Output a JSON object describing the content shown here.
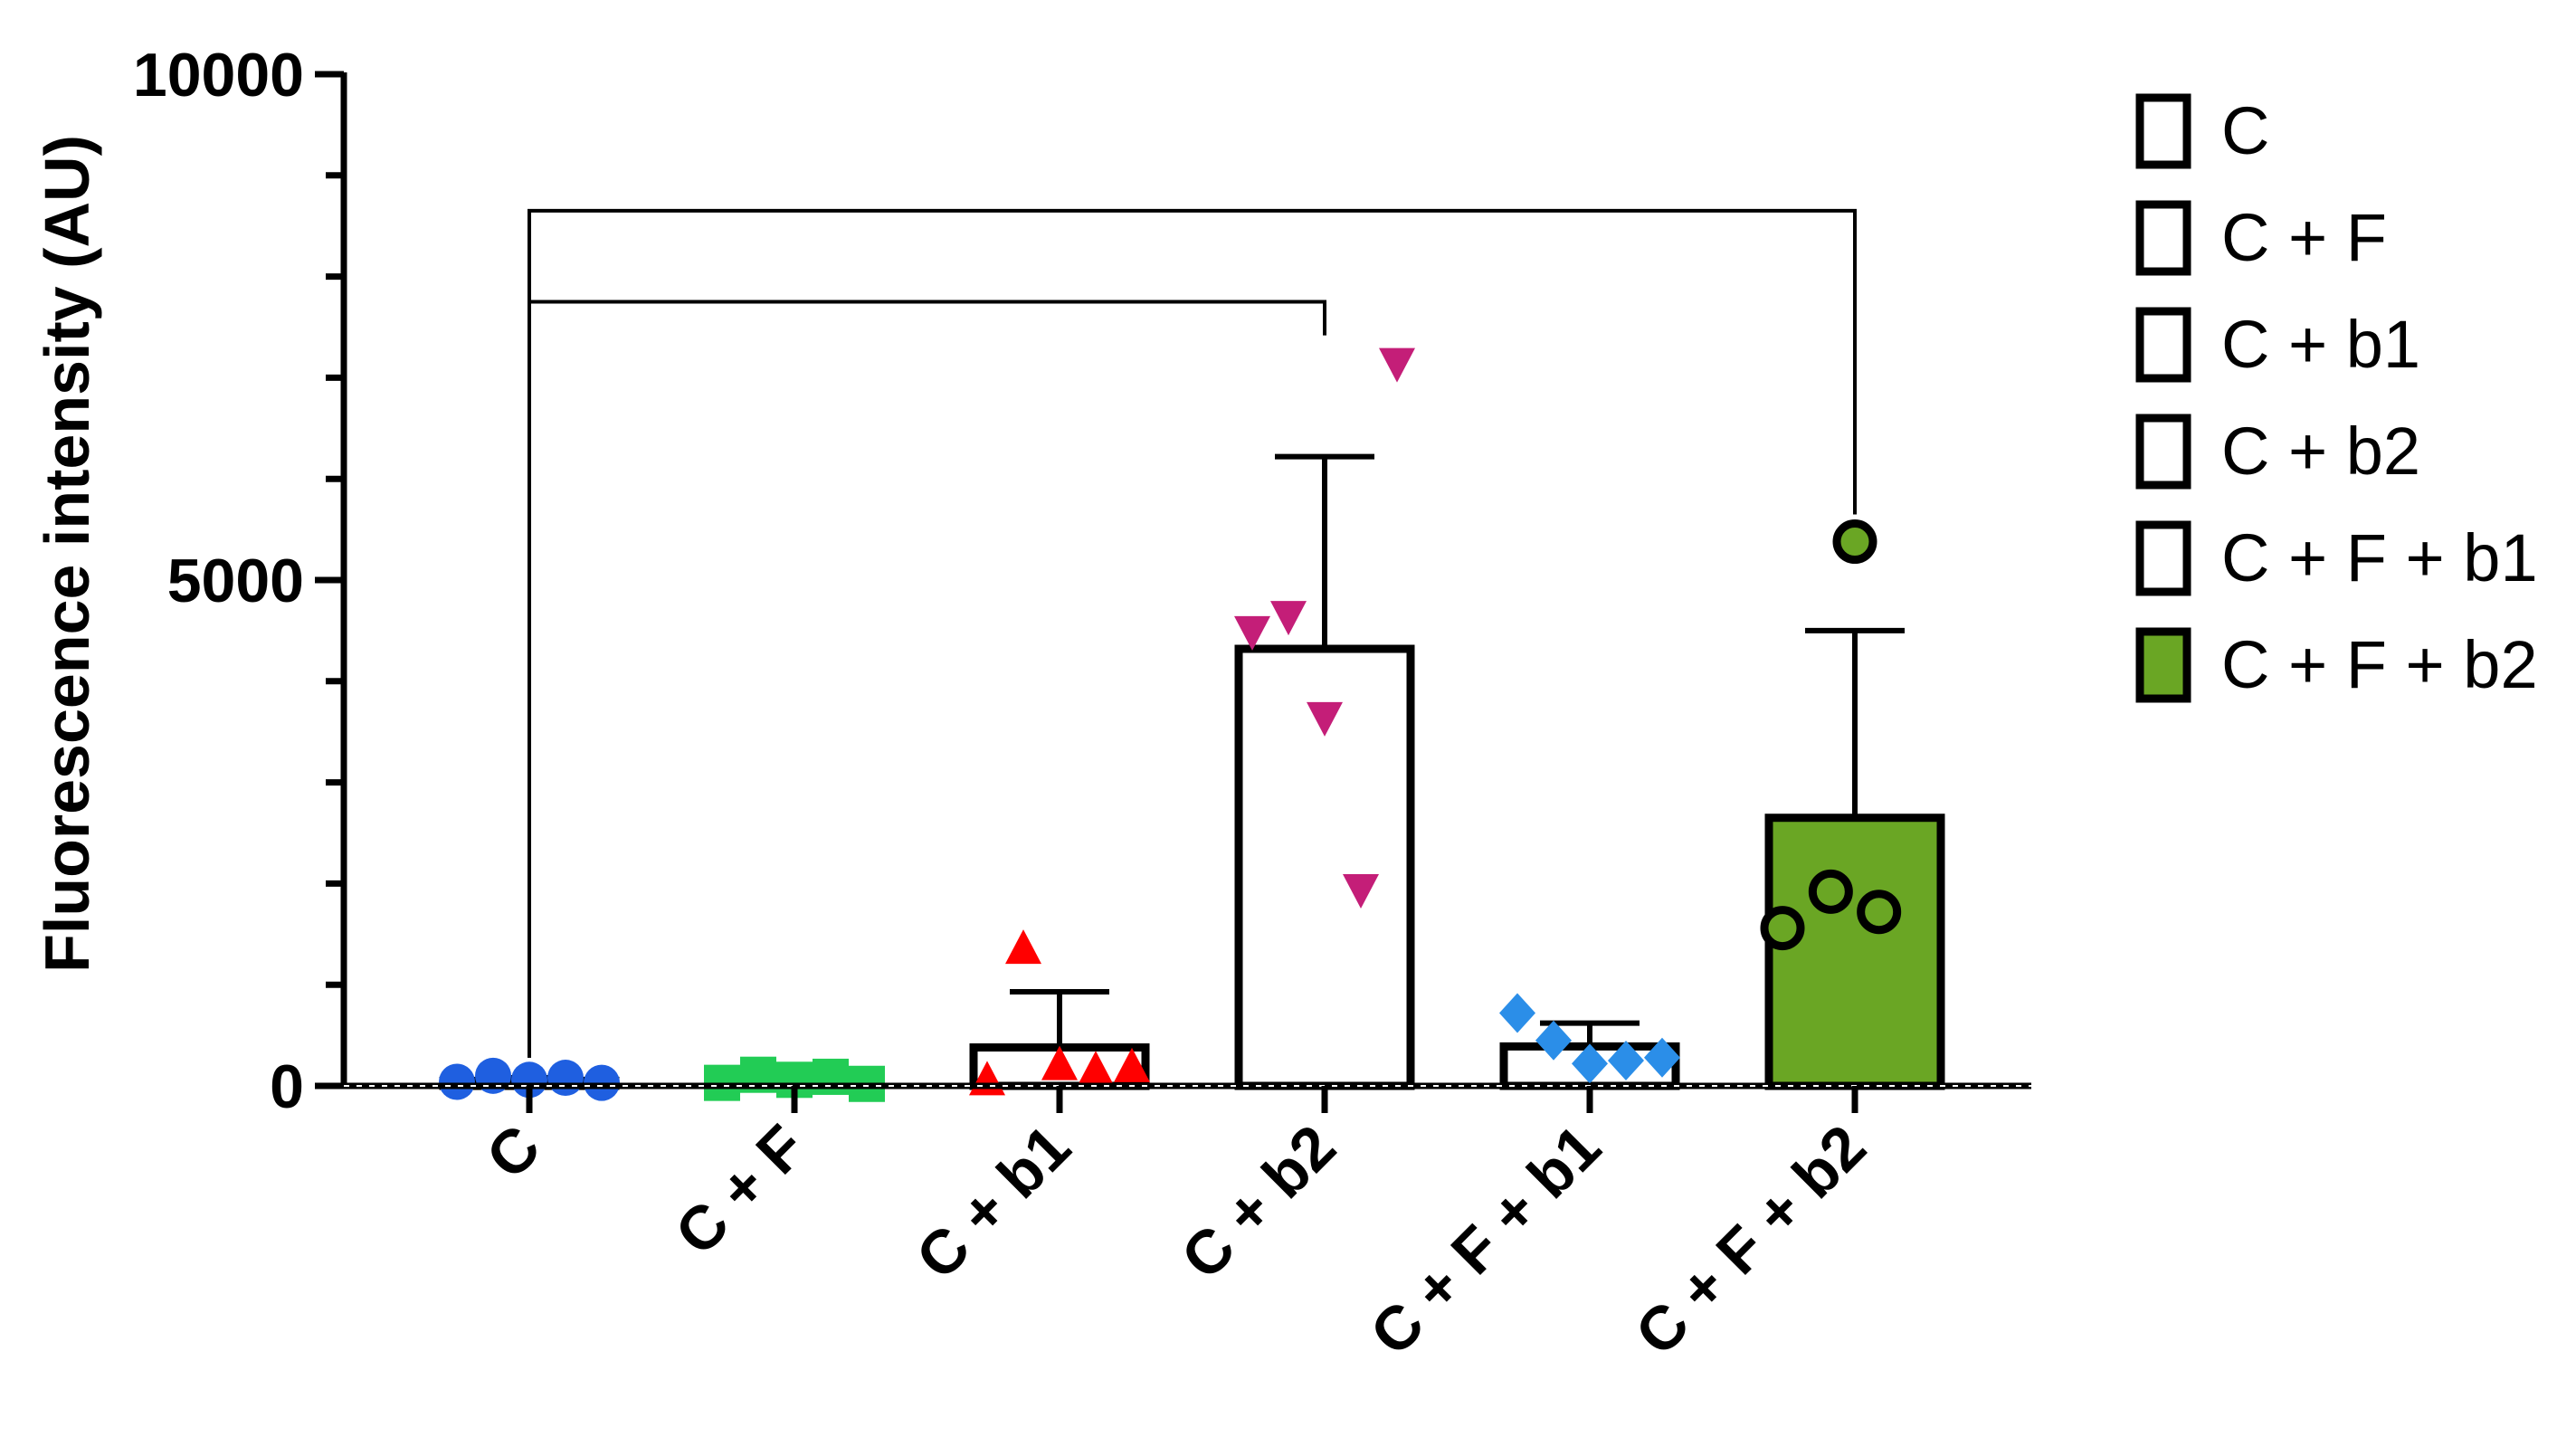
{
  "chart_data": {
    "type": "bar",
    "title": "",
    "xlabel": "",
    "ylabel": "Fluorescence intensity (AU)",
    "ylim": [
      0,
      10000
    ],
    "yticks": [
      0,
      5000,
      10000
    ],
    "ytick_labels": [
      "0",
      "5000",
      "10000"
    ],
    "y_minor_tick_step": 1000,
    "grid": false,
    "legend_position": "right",
    "baseline_dashed": true,
    "categories": [
      "C",
      "C + F",
      "C + b1",
      "C + b2",
      "C + F + b1",
      "C + F + b2"
    ],
    "series": [
      {
        "name": "C",
        "mean": 50,
        "error": 30,
        "fill": "#ffffff",
        "marker": "circle",
        "marker_color": "#1f5fe0",
        "points": [
          40,
          100,
          60,
          80,
          30
        ]
      },
      {
        "name": "C + F",
        "mean": 70,
        "error": 30,
        "fill": "#ffffff",
        "marker": "square",
        "marker_color": "#22cc55",
        "points": [
          30,
          110,
          60,
          90,
          20
        ]
      },
      {
        "name": "C + b1",
        "mean": 380,
        "error": 550,
        "fill": "#ffffff",
        "marker": "triangle-up",
        "marker_color": "#ff0000",
        "points": [
          50,
          1350,
          200,
          150,
          180
        ]
      },
      {
        "name": "C + b2",
        "mean": 4320,
        "error": 1900,
        "fill": "#ffffff",
        "marker": "triangle-down",
        "marker_color": "#c41e78",
        "points": [
          4500,
          4650,
          3650,
          1950,
          7150
        ]
      },
      {
        "name": "C + F + b1",
        "mean": 390,
        "error": 230,
        "fill": "#ffffff",
        "marker": "diamond",
        "marker_color": "#2b8ee8",
        "points": [
          720,
          450,
          220,
          250,
          280
        ]
      },
      {
        "name": "C + F + b2",
        "mean": 2650,
        "error": 1850,
        "fill": "#6aa624",
        "marker": "circle-open",
        "marker_color": "#6aa624",
        "points": [
          1560,
          1920,
          1720,
          5380
        ]
      }
    ],
    "comparisons": [
      {
        "from": "C",
        "to": "C + b2",
        "y": 7750
      },
      {
        "from": "C",
        "to": "C + F + b2",
        "y": 8650
      }
    ]
  }
}
